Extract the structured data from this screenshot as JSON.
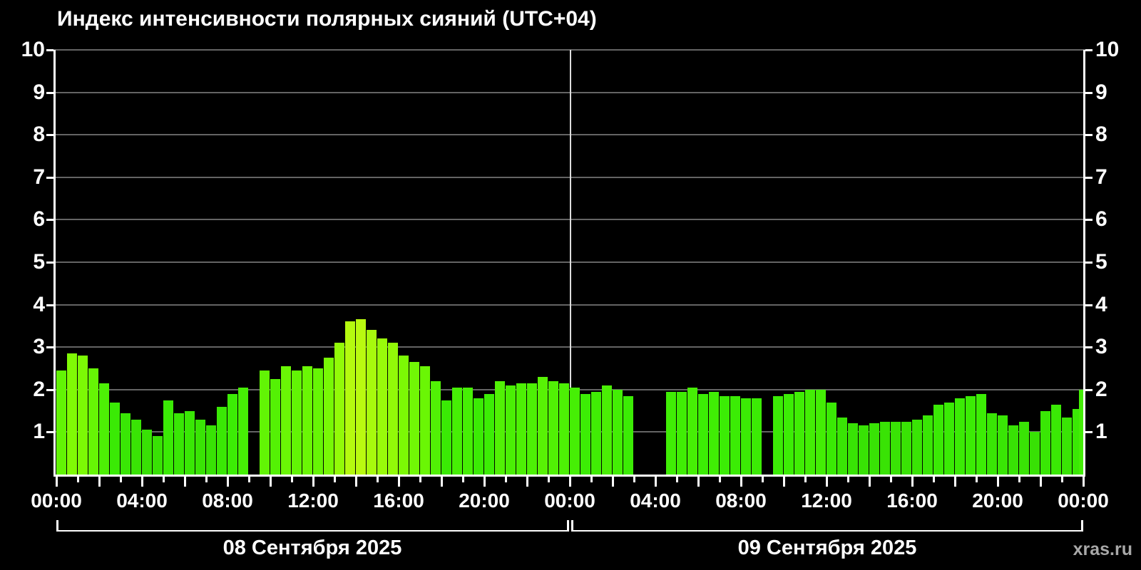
{
  "page": {
    "background": "#000000"
  },
  "chart_data": {
    "type": "bar",
    "title": "Индекс интенсивности полярных сияний (UTC+04)",
    "ylim": [
      0,
      10
    ],
    "ytick_labels": [
      "1",
      "2",
      "3",
      "4",
      "5",
      "6",
      "7",
      "8",
      "9",
      "10"
    ],
    "xtick_hour_labels": [
      "00:00",
      "04:00",
      "08:00",
      "12:00",
      "16:00",
      "20:00"
    ],
    "step_minutes": 30,
    "grid": "horizontal-on",
    "legend": "none",
    "days": [
      {
        "date": "08 Сентября 2025",
        "values": [
          2.45,
          2.85,
          2.8,
          2.5,
          2.15,
          1.7,
          1.45,
          1.3,
          1.05,
          0.9,
          1.75,
          1.45,
          1.5,
          1.3,
          1.15,
          1.6,
          1.9,
          2.05,
          null,
          2.45,
          2.25,
          2.55,
          2.45,
          2.55,
          2.5,
          2.75,
          3.1,
          3.6,
          3.65,
          3.4,
          3.2,
          3.1,
          2.8,
          2.65,
          2.55,
          2.2,
          1.75,
          2.05,
          2.05,
          1.8,
          1.9,
          2.2,
          2.1,
          2.15,
          2.15,
          2.3,
          2.2,
          2.15
        ]
      },
      {
        "date": "09 Сентября 2025",
        "values": [
          2.05,
          1.9,
          1.95,
          2.1,
          2.0,
          1.85,
          null,
          null,
          null,
          1.95,
          1.95,
          2.05,
          1.9,
          1.95,
          1.85,
          1.85,
          1.8,
          1.8,
          null,
          1.85,
          1.9,
          1.95,
          2.0,
          2.0,
          1.7,
          1.35,
          1.2,
          1.15,
          1.2,
          1.25,
          1.25,
          1.25,
          1.3,
          1.4,
          1.65,
          1.7,
          1.8,
          1.85,
          1.9,
          1.45,
          1.4,
          1.15,
          1.25,
          1.0,
          1.5,
          1.65,
          1.35,
          1.55
        ]
      }
    ],
    "closing_bar": {
      "time": "00:00",
      "value": 2.0
    },
    "colors": {
      "background": "#000000",
      "bar_low": "#3be305",
      "bar_high": "#b4f411",
      "gridline": "#646464",
      "axis": "#ffffff",
      "day_separator": "#dcdcdc",
      "watermark_text": "#a8a8a8"
    },
    "watermark": "xras.ru"
  }
}
